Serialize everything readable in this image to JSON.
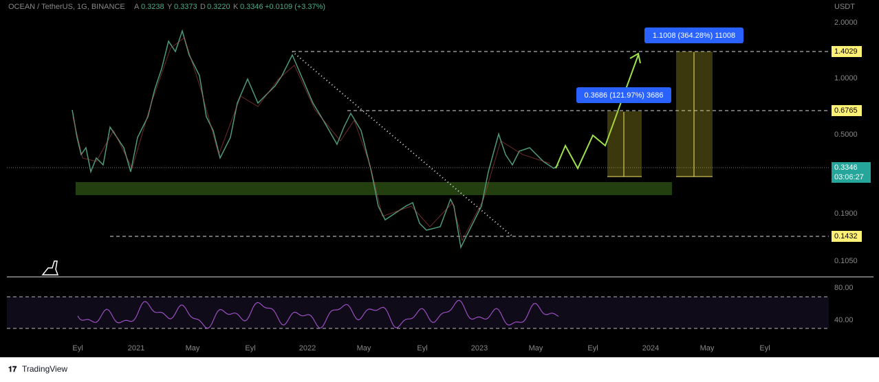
{
  "header": {
    "symbol": "OCEAN / TetherUS, 1G, BINANCE",
    "ohlc": [
      {
        "key": "A",
        "value": "0.3238"
      },
      {
        "key": "Y",
        "value": "0.3373"
      },
      {
        "key": "D",
        "value": "0.3220"
      },
      {
        "key": "K",
        "value": "0.3346"
      }
    ],
    "change": "+0.0109 (+3.37%)"
  },
  "price_axis": {
    "currency": "USDT",
    "labels": [
      "2.0000",
      "1.0000",
      "0.5000",
      "0.1900",
      "0.1050"
    ],
    "levels": [
      "1.4029",
      "0.6765",
      "0.1432"
    ],
    "last_price": "0.3346",
    "countdown": "03:06:27"
  },
  "annotations": [
    "1.1008 (364.28%) 11008",
    "0.3686 (121.97%) 3686"
  ],
  "rsi_axis": {
    "labels": [
      "80.00",
      "40.00"
    ]
  },
  "time_axis": {
    "labels": [
      "Eyl",
      "2021",
      "May",
      "Eyl",
      "2022",
      "May",
      "Eyl",
      "2023",
      "May",
      "Eyl",
      "2024",
      "May",
      "Eyl"
    ]
  },
  "footer": {
    "brand": "TradingView"
  }
}
